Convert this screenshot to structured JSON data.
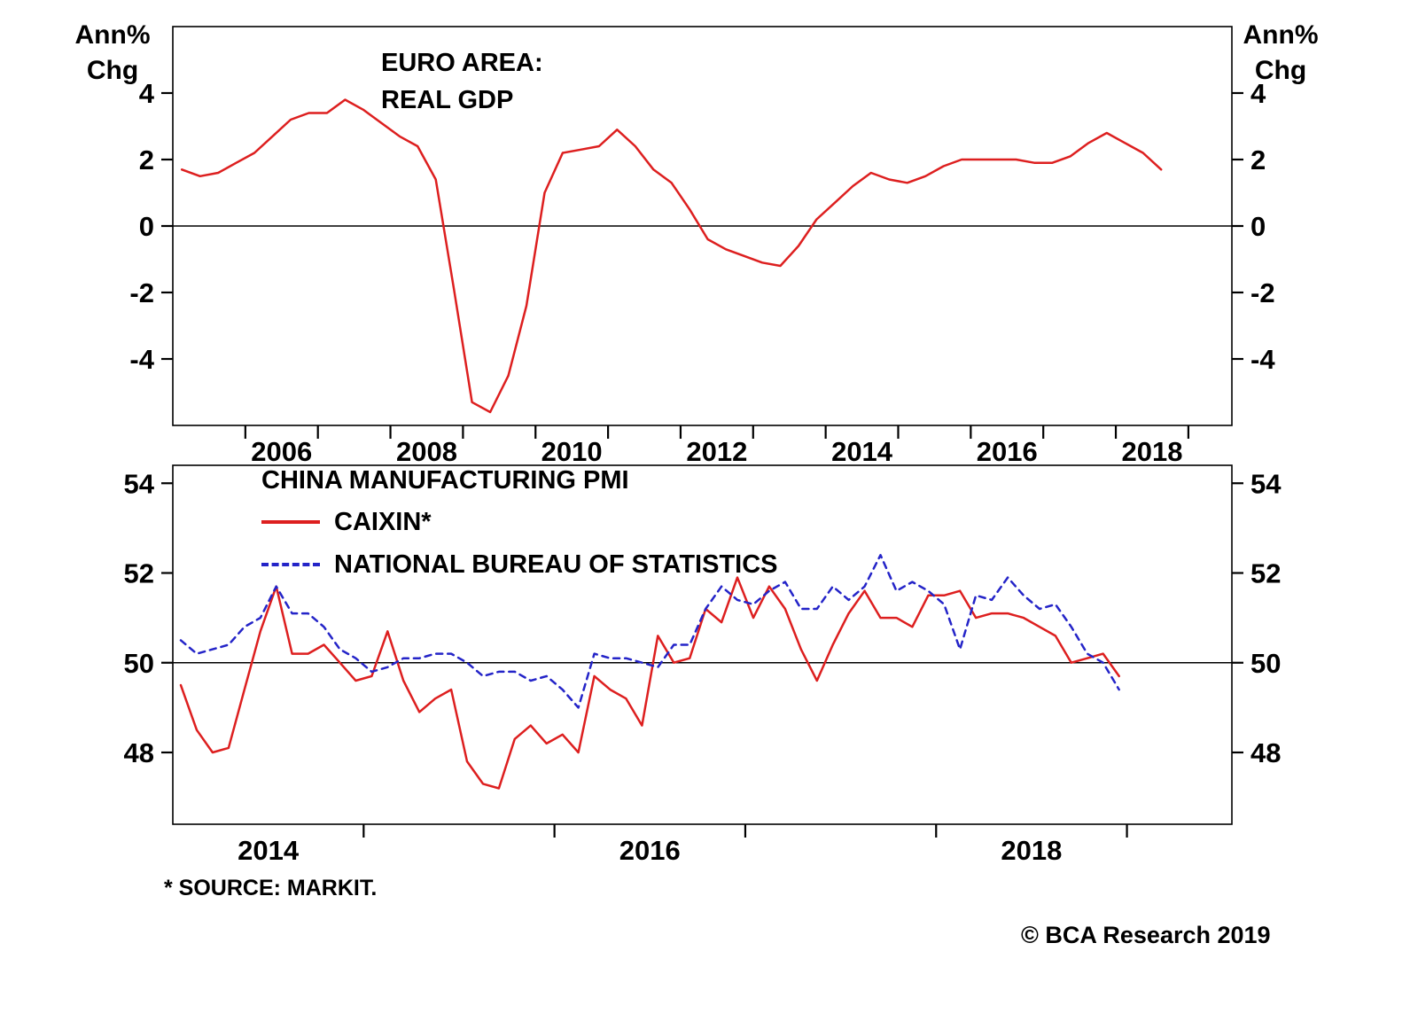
{
  "page": {
    "footnote": "* SOURCE: MARKIT.",
    "copyright": "© BCA Research 2019"
  },
  "colors": {
    "red": "#dd1f1f",
    "blue": "#2424c8",
    "axis": "#000000"
  },
  "chart_data": [
    {
      "type": "line",
      "title": "EURO AREA: REAL GDP",
      "title_lines": [
        "EURO AREA:",
        "REAL GDP"
      ],
      "unit_label": [
        "Ann%",
        "Chg"
      ],
      "xlabel": "",
      "ylabel": "Ann% Chg",
      "xlim": [
        2005.0,
        2019.6
      ],
      "ylim": [
        -6,
        6
      ],
      "y_ticks": [
        4,
        2,
        0,
        -2,
        -4
      ],
      "x_ticks": [
        2006,
        2007,
        2008,
        2009,
        2010,
        2011,
        2012,
        2013,
        2014,
        2015,
        2016,
        2017,
        2018,
        2019
      ],
      "x_year_labels": [
        {
          "text": "2006",
          "x": 2006.5
        },
        {
          "text": "2008",
          "x": 2008.5
        },
        {
          "text": "2010",
          "x": 2010.5
        },
        {
          "text": "2012",
          "x": 2012.5
        },
        {
          "text": "2014",
          "x": 2014.5
        },
        {
          "text": "2016",
          "x": 2016.5
        },
        {
          "text": "2018",
          "x": 2018.5
        }
      ],
      "ref_line": 0,
      "grid": false,
      "x_start": 2005.125,
      "x_step": 0.25,
      "series": [
        {
          "name": "EURO AREA: REAL GDP (Ann% Chg, quarterly, 2005Q1-2018Q3)",
          "color_key": "red",
          "dash": "solid",
          "values": [
            1.7,
            1.5,
            1.6,
            1.9,
            2.2,
            2.7,
            3.2,
            3.4,
            3.4,
            3.8,
            3.5,
            3.1,
            2.7,
            2.4,
            1.4,
            -1.9,
            -5.3,
            -5.6,
            -4.5,
            -2.4,
            1.0,
            2.2,
            2.3,
            2.4,
            2.9,
            2.4,
            1.7,
            1.3,
            0.5,
            -0.4,
            -0.7,
            -0.9,
            -1.1,
            -1.2,
            -0.6,
            0.2,
            0.7,
            1.2,
            1.6,
            1.4,
            1.3,
            1.5,
            1.8,
            2.0,
            2.0,
            2.0,
            2.0,
            1.9,
            1.9,
            2.1,
            2.5,
            2.8,
            2.5,
            2.2,
            1.7
          ]
        }
      ]
    },
    {
      "type": "line",
      "title": "CHINA MANUFACTURING PMI",
      "xlabel": "",
      "ylabel": "PMI",
      "xlim": [
        2014.0,
        2019.55
      ],
      "ylim": [
        46.4,
        54.4
      ],
      "y_ticks": [
        54,
        52,
        50,
        48
      ],
      "x_ticks": [
        2015,
        2016,
        2017,
        2018,
        2019
      ],
      "x_year_labels": [
        {
          "text": "2014",
          "x": 2014.5
        },
        {
          "text": "2016",
          "x": 2016.5
        },
        {
          "text": "2018",
          "x": 2018.5
        }
      ],
      "ref_line": 50,
      "grid": false,
      "legend_position": "top-left-inside",
      "legend": [
        {
          "label": "CAIXIN*",
          "dash": "solid",
          "color_key": "red"
        },
        {
          "label": "NATIONAL BUREAU OF STATISTICS",
          "dash": "dashed",
          "color_key": "blue"
        }
      ],
      "x_start": 2014.042,
      "x_step": 0.083333,
      "series": [
        {
          "name": "CAIXIN* (monthly, Jan 2014 - Dec 2018)",
          "color_key": "red",
          "dash": "solid",
          "values": [
            49.5,
            48.5,
            48.0,
            48.1,
            49.4,
            50.7,
            51.7,
            50.2,
            50.2,
            50.4,
            50.0,
            49.6,
            49.7,
            50.7,
            49.6,
            48.9,
            49.2,
            49.4,
            47.8,
            47.3,
            47.2,
            48.3,
            48.6,
            48.2,
            48.4,
            48.0,
            49.7,
            49.4,
            49.2,
            48.6,
            50.6,
            50.0,
            50.1,
            51.2,
            50.9,
            51.9,
            51.0,
            51.7,
            51.2,
            50.3,
            49.6,
            50.4,
            51.1,
            51.6,
            51.0,
            51.0,
            50.8,
            51.5,
            51.5,
            51.6,
            51.0,
            51.1,
            51.1,
            51.0,
            50.8,
            50.6,
            50.0,
            50.1,
            50.2,
            49.7
          ]
        },
        {
          "name": "NATIONAL BUREAU OF STATISTICS (monthly, Jan 2014 - Dec 2018)",
          "color_key": "blue",
          "dash": "dashed",
          "values": [
            50.5,
            50.2,
            50.3,
            50.4,
            50.8,
            51.0,
            51.7,
            51.1,
            51.1,
            50.8,
            50.3,
            50.1,
            49.8,
            49.9,
            50.1,
            50.1,
            50.2,
            50.2,
            50.0,
            49.7,
            49.8,
            49.8,
            49.6,
            49.7,
            49.4,
            49.0,
            50.2,
            50.1,
            50.1,
            50.0,
            49.9,
            50.4,
            50.4,
            51.2,
            51.7,
            51.4,
            51.3,
            51.6,
            51.8,
            51.2,
            51.2,
            51.7,
            51.4,
            51.7,
            52.4,
            51.6,
            51.8,
            51.6,
            51.3,
            50.3,
            51.5,
            51.4,
            51.9,
            51.5,
            51.2,
            51.3,
            50.8,
            50.2,
            50.0,
            49.4
          ]
        }
      ]
    }
  ]
}
